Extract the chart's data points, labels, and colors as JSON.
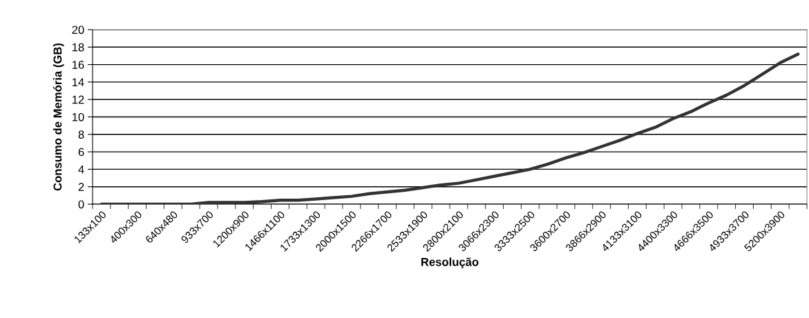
{
  "chart_data": {
    "type": "line",
    "xlabel": "Resolução",
    "ylabel": "Consumo de Memória (GB)",
    "categories": [
      "133x100",
      null,
      "400x300",
      null,
      "640x480",
      null,
      "933x700",
      null,
      "1200x900",
      null,
      "1466x1100",
      null,
      "1733x1300",
      null,
      "2000x1500",
      null,
      "2266x1700",
      null,
      "2533x1900",
      null,
      "2800x2100",
      null,
      "3066x2300",
      null,
      "3333x2500",
      null,
      "3600x2700",
      null,
      "3866x2900",
      null,
      "4133x3100",
      null,
      "4400x3300",
      null,
      "4666x3500",
      null,
      "4933x3700",
      null,
      "5200x3900",
      null
    ],
    "series": [
      {
        "color": "#333333",
        "values": [
          0,
          0,
          0,
          0,
          0,
          0,
          0.2,
          0.2,
          0.2,
          0.3,
          0.45,
          0.45,
          0.6,
          0.75,
          0.9,
          1.2,
          1.4,
          1.6,
          1.9,
          2.2,
          2.4,
          2.8,
          3.2,
          3.6,
          4.0,
          4.6,
          5.3,
          5.9,
          6.6,
          7.3,
          8.1,
          8.8,
          9.8,
          10.6,
          11.6,
          12.5,
          13.6,
          14.9,
          16.2,
          17.2
        ]
      }
    ],
    "ylim": [
      0,
      20
    ],
    "yticks": [
      0,
      2,
      4,
      6,
      8,
      10,
      12,
      14,
      16,
      18,
      20
    ],
    "grid": "y",
    "marker": "none",
    "line_style": "solid",
    "legend": false
  }
}
